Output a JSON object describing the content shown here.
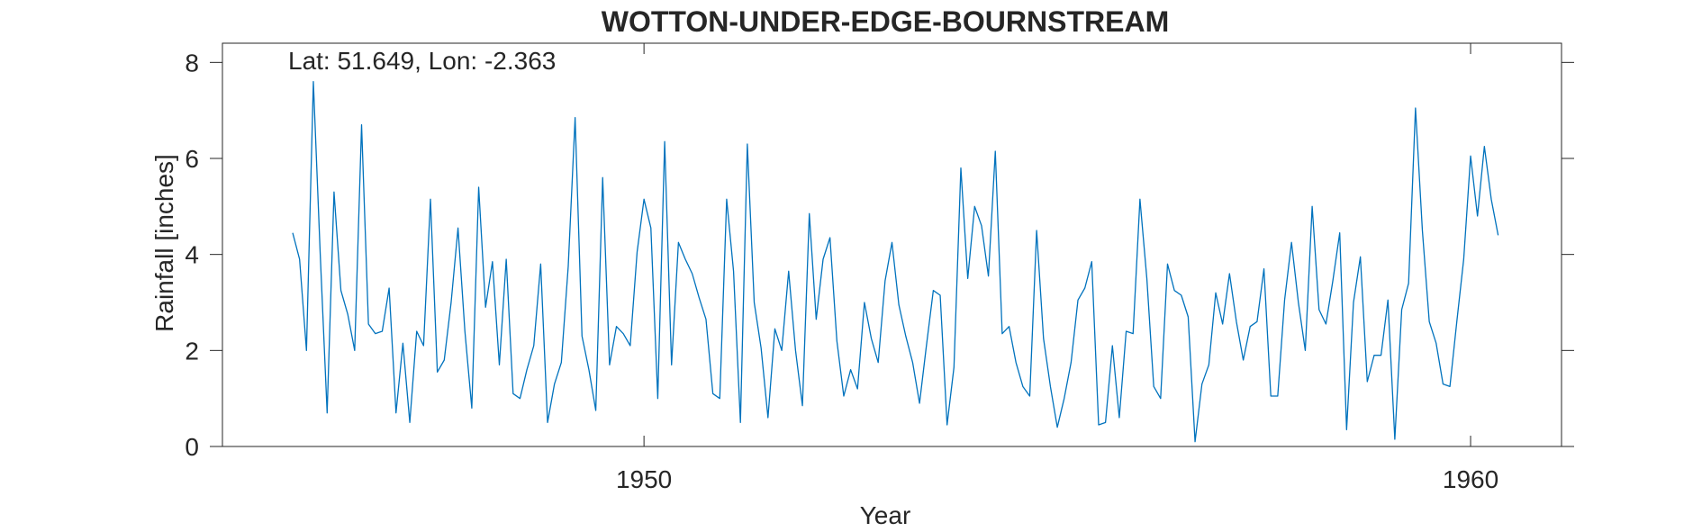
{
  "chart_data": {
    "type": "line",
    "title": "WOTTON-UNDER-EDGE-BOURNSTREAM",
    "xlabel": "Year",
    "ylabel": "Rainfall [inches]",
    "annotation": "Lat: 51.649, Lon: -2.363",
    "xlim": [
      1944.9,
      1961.1
    ],
    "ylim": [
      0,
      8.4
    ],
    "xticks": [
      1950,
      1960
    ],
    "xtick_labels": [
      "1950",
      "1960"
    ],
    "yticks": [
      0,
      2,
      4,
      6,
      8
    ],
    "ytick_labels": [
      "0",
      "2",
      "4",
      "6",
      "8"
    ],
    "grid": false,
    "line_color": "#0072BD",
    "series": [
      {
        "x_start": "1945-10",
        "step": "month",
        "values": [
          4.45,
          3.9,
          2.0,
          7.6,
          4.0,
          0.7,
          5.3,
          3.25,
          2.75,
          2.0,
          6.7,
          2.55,
          2.35,
          2.4,
          3.3,
          0.7,
          2.15,
          0.5,
          2.4,
          2.1,
          5.15,
          1.55,
          1.8,
          3.0,
          4.55,
          2.4,
          0.8,
          5.4,
          2.9,
          3.85,
          1.7,
          3.9,
          1.1,
          1.0,
          1.6,
          2.1,
          3.8,
          0.5,
          1.3,
          1.75,
          3.75,
          6.85,
          2.3,
          1.6,
          0.75,
          5.6,
          1.7,
          2.5,
          2.35,
          2.1,
          4.05,
          5.15,
          4.55,
          1.0,
          6.35,
          1.7,
          4.25,
          3.9,
          3.6,
          3.1,
          2.65,
          1.1,
          1.0,
          5.15,
          3.65,
          0.5,
          6.3,
          3.0,
          2.05,
          0.6,
          2.45,
          2.0,
          3.65,
          2.0,
          0.85,
          4.85,
          2.65,
          3.9,
          4.35,
          2.2,
          1.05,
          1.6,
          1.2,
          3.0,
          2.25,
          1.75,
          3.45,
          4.25,
          2.95,
          2.3,
          1.75,
          0.9,
          2.1,
          3.25,
          3.15,
          0.45,
          1.65,
          5.8,
          3.5,
          5.0,
          4.6,
          3.55,
          6.15,
          2.35,
          2.5,
          1.75,
          1.25,
          1.05,
          4.5,
          2.25,
          1.25,
          0.4,
          1.0,
          1.75,
          3.05,
          3.3,
          3.85,
          0.45,
          0.5,
          2.1,
          0.6,
          2.4,
          2.35,
          5.15,
          3.5,
          1.25,
          1.0,
          3.8,
          3.25,
          3.15,
          2.7,
          0.1,
          1.3,
          1.7,
          3.2,
          2.55,
          3.6,
          2.6,
          1.8,
          2.5,
          2.6,
          3.7,
          1.05,
          1.05,
          3.05,
          4.25,
          3.0,
          2.0,
          5.0,
          2.85,
          2.55,
          3.45,
          4.45,
          0.35,
          3.0,
          3.95,
          1.35,
          1.9,
          1.9,
          3.05,
          0.15,
          2.85,
          3.4,
          7.05,
          4.5,
          2.6,
          2.15,
          1.3,
          1.25,
          2.6,
          3.9,
          6.05,
          4.8,
          6.25,
          5.15,
          4.4
        ]
      }
    ]
  }
}
